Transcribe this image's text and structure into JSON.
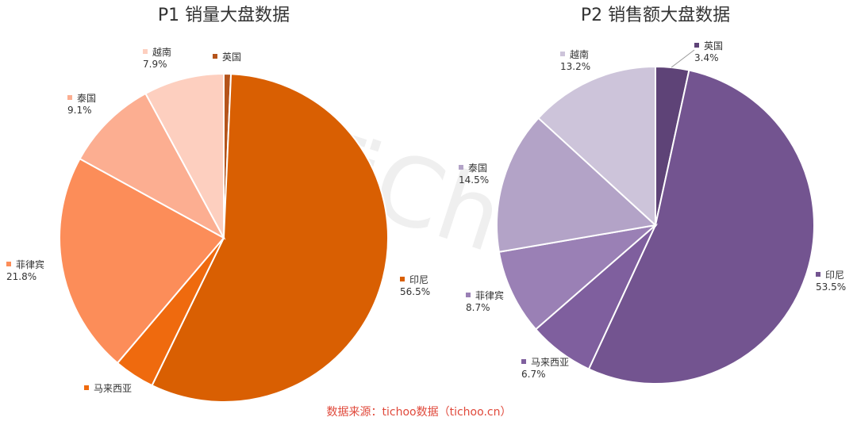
{
  "watermark": "TiChoo",
  "source_text": "数据来源：tichoo数据（tichoo.cn）",
  "colors": {
    "source": "#e0493b",
    "slice_border": "#ffffff"
  },
  "chart_data": [
    {
      "type": "pie",
      "title": "P1 销量大盘数据",
      "unit": "%",
      "slices": [
        {
          "label": "英国",
          "value": 0.7,
          "display": "",
          "color": "#b5541b"
        },
        {
          "label": "印尼",
          "value": 56.5,
          "display": "56.5%",
          "color": "#d95f02"
        },
        {
          "label": "马来西亚",
          "value": 4.0,
          "display": "",
          "color": "#ef6a0e"
        },
        {
          "label": "菲律宾",
          "value": 21.8,
          "display": "21.8%",
          "color": "#fc8d59"
        },
        {
          "label": "泰国",
          "value": 9.1,
          "display": "9.1%",
          "color": "#fcae91"
        },
        {
          "label": "越南",
          "value": 7.9,
          "display": "7.9%",
          "color": "#fdcfbf"
        }
      ]
    },
    {
      "type": "pie",
      "title": "P2 销售额大盘数据",
      "unit": "%",
      "slices": [
        {
          "label": "英国",
          "value": 3.4,
          "display": "3.4%",
          "color": "#5e4377"
        },
        {
          "label": "印尼",
          "value": 53.5,
          "display": "53.5%",
          "color": "#735490"
        },
        {
          "label": "马来西亚",
          "value": 6.7,
          "display": "6.7%",
          "color": "#7f5f9e"
        },
        {
          "label": "菲律宾",
          "value": 8.7,
          "display": "8.7%",
          "color": "#9a80b5"
        },
        {
          "label": "泰国",
          "value": 14.5,
          "display": "14.5%",
          "color": "#b3a3c7"
        },
        {
          "label": "越南",
          "value": 13.2,
          "display": "13.2%",
          "color": "#cdc4da"
        }
      ]
    }
  ]
}
